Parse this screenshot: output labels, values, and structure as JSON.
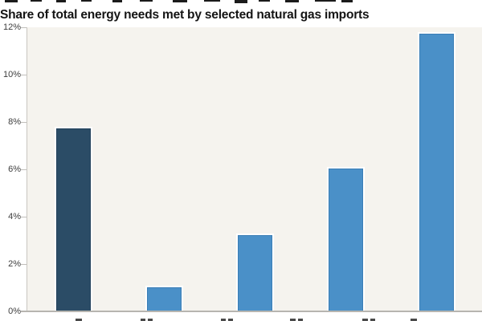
{
  "title": "Share of total energy needs met by selected natural gas imports",
  "chart_data": {
    "type": "bar",
    "title": "Share of total energy needs met by selected natural gas imports",
    "categories": [
      "",
      "",
      "",
      "",
      ""
    ],
    "values": [
      7.8,
      1.1,
      3.3,
      6.1,
      11.8
    ],
    "value_unit": "percent",
    "ylim": [
      0,
      12
    ],
    "yticks": [
      0,
      2,
      4,
      6,
      8,
      10,
      12
    ],
    "ytick_labels": [
      "0%",
      "2%",
      "4%",
      "6%",
      "8%",
      "10%",
      "12%"
    ],
    "xlabel": "",
    "ylabel": "",
    "grid": false,
    "legend": "none",
    "highlight_index": 0,
    "colors": {
      "bar_highlight": "#2b4c66",
      "bar_highlight_edge": "#22405a",
      "bar_default": "#4a90c8",
      "bar_default_edge": "#3a7eb6",
      "bar_outline": "#ffffff",
      "plot_background": "#f5f3ee",
      "axis_line": "#b7b5b0",
      "y_axis_line": "#c9c6c1",
      "tick_mark": "#c0beba",
      "tick_text": "#3d3d3d",
      "title_text": "#141414",
      "page_background": "#ffffff"
    }
  }
}
